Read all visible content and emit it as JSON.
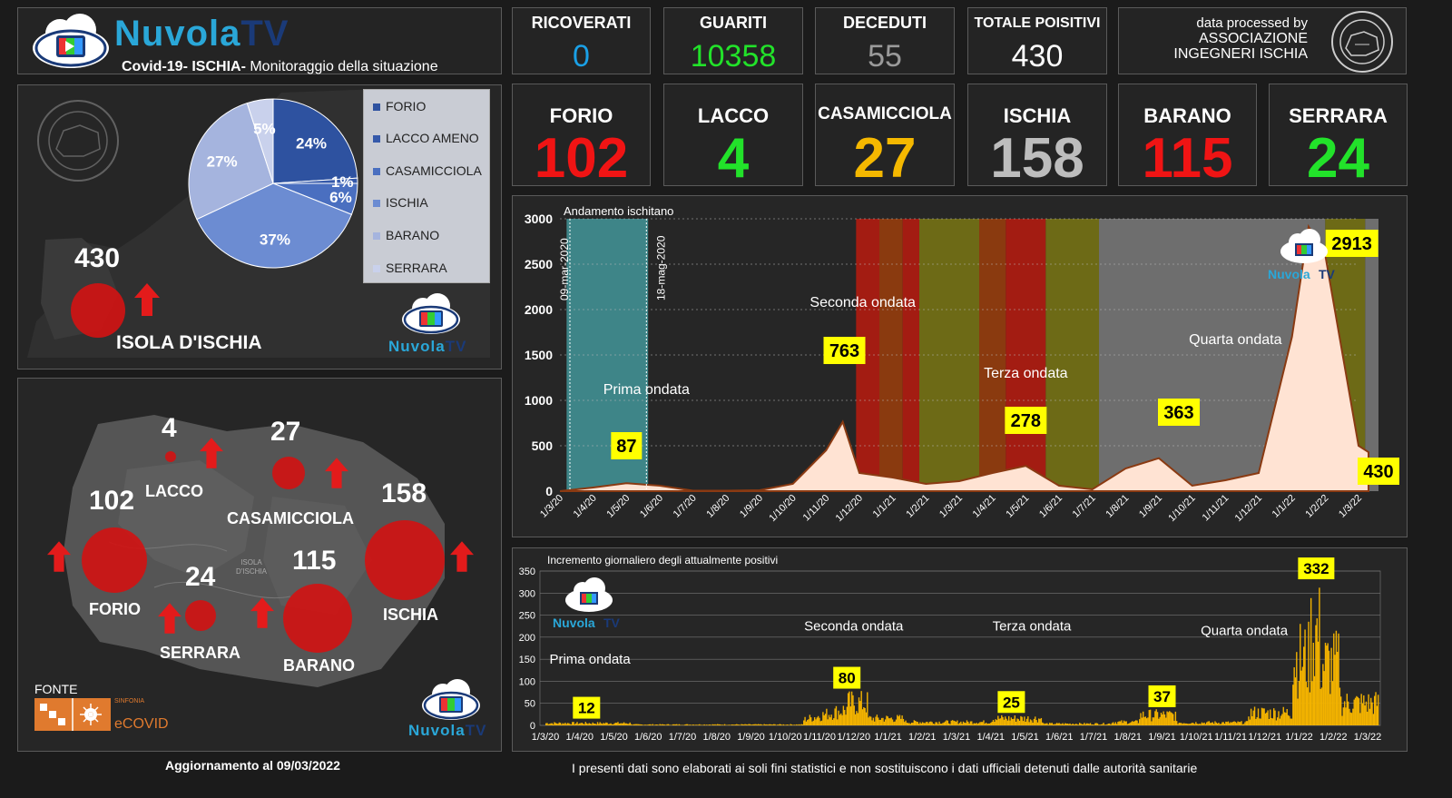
{
  "header": {
    "brand_main": "Nuvola",
    "brand_accent": "TV",
    "subtitle_bold": "Covid-19- ISCHIA-",
    "subtitle_rest": " Monitoraggio della situazione"
  },
  "stats": [
    {
      "label": "RICOVERATI",
      "value": "0",
      "color": "#1aa0e6"
    },
    {
      "label": "GUARITI",
      "value": "10358",
      "color": "#22e22a"
    },
    {
      "label": "DECEDUTI",
      "value": "55",
      "color": "#9a9a9a"
    },
    {
      "label": "TOTALE POISITIVI",
      "value": "430",
      "color": "#ffffff"
    }
  ],
  "credit": {
    "line1": "data processed by",
    "line2": "ASSOCIAZIONE",
    "line3": "INGEGNERI ISCHIA"
  },
  "towns": [
    {
      "label": "FORIO",
      "value": "102",
      "color": "#f01414"
    },
    {
      "label": "LACCO",
      "value": "4",
      "color": "#22e22a"
    },
    {
      "label": "CASAMICCIOLA",
      "value": "27",
      "color": "#f5b800"
    },
    {
      "label": "ISCHIA",
      "value": "158",
      "color": "#bdbdbd"
    },
    {
      "label": "BARANO",
      "value": "115",
      "color": "#f01414"
    },
    {
      "label": "SERRARA",
      "value": "24",
      "color": "#22e22a"
    }
  ],
  "island_panel": {
    "total": "430",
    "label": "ISOLA D'ISCHIA",
    "pie": {
      "slices": [
        {
          "name": "FORIO",
          "pct": 24,
          "label": "24%",
          "color": "#2e52a0"
        },
        {
          "name": "LACCO AMENO",
          "pct": 1,
          "label": "1%",
          "color": "#3559aa"
        },
        {
          "name": "CASAMICCIOLA",
          "pct": 6,
          "label": "6%",
          "color": "#4a6fc0"
        },
        {
          "name": "ISCHIA",
          "pct": 37,
          "label": "37%",
          "color": "#6c8cd2"
        },
        {
          "name": "BARANO",
          "pct": 27,
          "label": "27%",
          "color": "#a5b4de"
        },
        {
          "name": "SERRARA",
          "pct": 5,
          "label": "5%",
          "color": "#c9d1ec"
        }
      ]
    }
  },
  "map_panel": {
    "items": [
      {
        "num": "4",
        "label": "LACCO"
      },
      {
        "num": "27",
        "label": "CASAMICCIOLA"
      },
      {
        "num": "102",
        "label": "FORIO"
      },
      {
        "num": "158",
        "label": "ISCHIA"
      },
      {
        "num": "24",
        "label": "SERRARA"
      },
      {
        "num": "115",
        "label": "BARANO"
      }
    ],
    "island_text_1": "ISOLA",
    "island_text_2": "D'ISCHIA",
    "fonte": "FONTE",
    "sinfonia": "SINFONIA",
    "ecovid": "eCOVID"
  },
  "chart_data": [
    {
      "type": "area",
      "title": "Andamento ischitano",
      "ylim": [
        0,
        3000
      ],
      "yticks": [
        "0",
        "500",
        "1000",
        "1500",
        "2000",
        "2500",
        "3000"
      ],
      "x_ticks": [
        "1/3/20",
        "1/4/20",
        "1/5/20",
        "1/6/20",
        "1/7/20",
        "1/8/20",
        "1/9/20",
        "1/10/20",
        "1/11/20",
        "1/12/20",
        "1/1/21",
        "1/2/21",
        "1/3/21",
        "1/4/21",
        "1/5/21",
        "1/6/21",
        "1/7/21",
        "1/8/21",
        "1/9/21",
        "1/10/21",
        "1/11/21",
        "1/12/21",
        "1/1/22",
        "1/2/22",
        "1/3/22"
      ],
      "x": [
        "1/3/20",
        "1/4/20",
        "1/5/20",
        "1/6/20",
        "1/7/20",
        "1/8/20",
        "1/9/20",
        "1/10/20",
        "1/11/20",
        "15/11/20",
        "1/12/20",
        "1/1/21",
        "1/2/21",
        "1/3/21",
        "1/4/21",
        "1/5/21",
        "1/6/21",
        "1/7/21",
        "1/8/21",
        "1/9/21",
        "1/10/21",
        "1/11/21",
        "1/12/21",
        "1/1/22",
        "15/1/22",
        "1/2/22",
        "1/3/22",
        "9/3/22"
      ],
      "values": [
        0,
        40,
        87,
        60,
        5,
        5,
        10,
        80,
        450,
        763,
        200,
        150,
        80,
        110,
        200,
        278,
        60,
        20,
        250,
        363,
        60,
        120,
        200,
        1700,
        2913,
        2600,
        500,
        430
      ],
      "annotations": [
        "87",
        "763",
        "278",
        "363",
        "2913",
        "430"
      ],
      "wave_labels": [
        "Prima ondata",
        "Seconda ondata",
        "Terza ondata",
        "Quarta ondata"
      ],
      "date_markers": [
        "09-mar-2020",
        "18-mag-2020"
      ]
    },
    {
      "type": "bar",
      "title": "Incremento giornaliero degli attualmente positivi",
      "ylim": [
        0,
        350
      ],
      "yticks": [
        "0",
        "50",
        "100",
        "150",
        "200",
        "250",
        "300",
        "350"
      ],
      "x_ticks": [
        "1/3/20",
        "1/4/20",
        "1/5/20",
        "1/6/20",
        "1/7/20",
        "1/8/20",
        "1/9/20",
        "1/10/20",
        "1/11/20",
        "1/12/20",
        "1/1/21",
        "1/2/21",
        "1/3/21",
        "1/4/21",
        "1/5/21",
        "1/6/21",
        "1/7/21",
        "1/8/21",
        "1/9/21",
        "1/10/21",
        "1/11/21",
        "1/12/21",
        "1/1/22",
        "1/2/22",
        "1/3/22"
      ],
      "annotations": [
        "12",
        "80",
        "25",
        "37",
        "332"
      ],
      "wave_labels": [
        "Prima  ondata",
        "Seconda ondata",
        "Terza ondata",
        "Quarta ondata"
      ]
    }
  ],
  "footer": {
    "update": "Aggiornamento al  09/03/2022",
    "disclaimer": "I presenti dati sono elaborati ai soli fini statistici e non sostituiscono i dati ufficiali detenuti dalle autorità sanitarie"
  }
}
